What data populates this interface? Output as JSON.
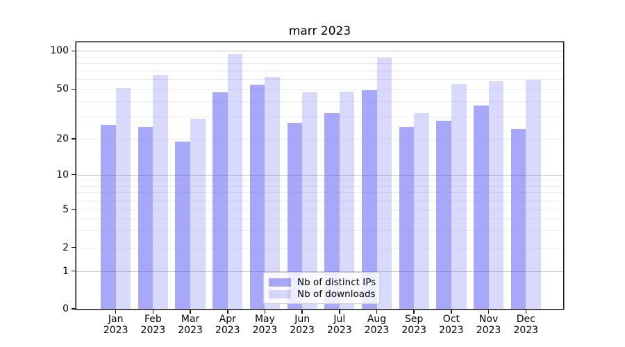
{
  "title": "marr 2023",
  "chart_data": {
    "type": "bar",
    "title": "marr 2023",
    "xlabel": "",
    "ylabel": "",
    "categories": [
      "Jan 2023",
      "Feb 2023",
      "Mar 2023",
      "Apr 2023",
      "May 2023",
      "Jun 2023",
      "Jul 2023",
      "Aug 2023",
      "Sep 2023",
      "Oct 2023",
      "Nov 2023",
      "Dec 2023"
    ],
    "series": [
      {
        "name": "Nb of distinct IPs",
        "color": "rgba(81,81,245,0.50)",
        "values": [
          26,
          25,
          19,
          47,
          54,
          27,
          32,
          49,
          25,
          28,
          37,
          24
        ]
      },
      {
        "name": "Nb of downloads",
        "color": "rgba(81,81,245,0.22)",
        "values": [
          51,
          65,
          29,
          94,
          62,
          47,
          48,
          88,
          32,
          55,
          58,
          59
        ]
      }
    ],
    "yscale": "log-like with 0 baseline",
    "yticks": [
      0,
      1,
      2,
      5,
      10,
      20,
      50,
      100
    ],
    "ytick_labels": [
      "0",
      "1",
      "2",
      "5",
      "10",
      "20",
      "50",
      "100"
    ],
    "ylim": [
      0,
      115
    ],
    "grid": "horizontal; major at 1,10,100; minor at 2-9 and 20-90",
    "legend_position": "lower center"
  },
  "legend": {
    "items": [
      {
        "label": "Nb of distinct IPs",
        "color": "rgba(81,81,245,0.50)"
      },
      {
        "label": "Nb of downloads",
        "color": "rgba(81,81,245,0.22)"
      }
    ]
  }
}
